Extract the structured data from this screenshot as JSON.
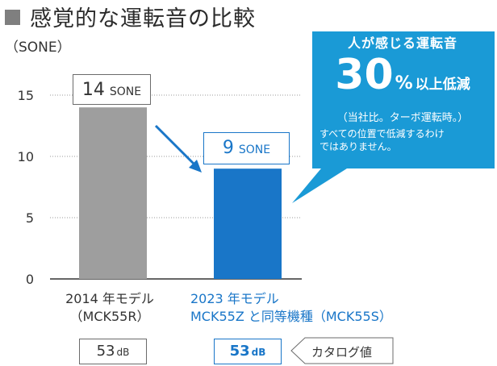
{
  "title": "感覚的な運転音の比較",
  "colors": {
    "accent_blue": "#1976c8",
    "callout_blue": "#1a9ad6",
    "bar_gray": "#9e9e9e",
    "title_square": "#7f7f7f"
  },
  "chart_data": {
    "type": "bar",
    "ylabel": "（SONE）",
    "ylim": [
      0,
      17
    ],
    "yticks": [
      0,
      5,
      10,
      15
    ],
    "grid": true,
    "categories": [
      {
        "line1": "2014 年モデル",
        "line2": "（MCK55R）"
      },
      {
        "line1": "2023 年モデル",
        "line2": "MCK55Z と同等機種（MCK55S）"
      }
    ],
    "values": [
      14,
      9
    ],
    "value_unit": "SONE",
    "bar_colors": [
      "#9e9e9e",
      "#1976c8"
    ],
    "db_values": [
      {
        "value": "53",
        "unit": "dB"
      },
      {
        "value": "53",
        "unit": "dB"
      }
    ],
    "catalog_label": "カタログ値"
  },
  "callout": {
    "heading": "人が感じる運転音",
    "big_number": "30",
    "big_unit": "%",
    "big_tail": "以上低減",
    "note": "（当社比。ターボ運転時。）",
    "disclaimer_line1": "すべての位置で低減するわけ",
    "disclaimer_line2": "ではありません。"
  }
}
